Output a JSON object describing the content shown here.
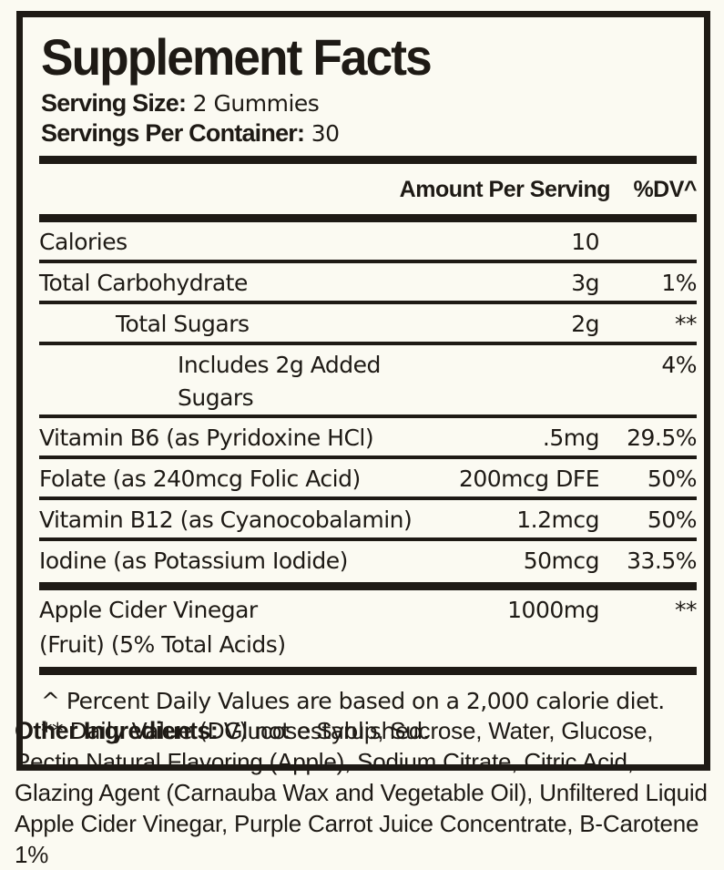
{
  "label": {
    "title": "Supplement Facts",
    "serving_size_label": "Serving Size:",
    "serving_size_value": "2 Gummies",
    "servings_per_container_label": "Servings Per Container:",
    "servings_per_container_value": "30",
    "column_headers": {
      "amount": "Amount Per Serving",
      "dv": "%DV^"
    },
    "rows": [
      {
        "name": "Calories",
        "amount": "10",
        "dv": "",
        "indent": 0
      },
      {
        "name": "Total Carbohydrate",
        "amount": "3g",
        "dv": "1%",
        "indent": 0
      },
      {
        "name": "Total Sugars",
        "amount": "2g",
        "dv": "**",
        "indent": 1
      },
      {
        "name": "Includes 2g Added Sugars",
        "amount": "",
        "dv": "4%",
        "indent": 2
      },
      {
        "name": "Vitamin B6 (as Pyridoxine HCl)",
        "amount": ".5mg",
        "dv": "29.5%",
        "indent": 0
      },
      {
        "name": "Folate (as 240mcg Folic Acid)",
        "amount": "200mcg DFE",
        "dv": "50%",
        "indent": 0
      },
      {
        "name": "Vitamin B12 (as Cyanocobalamin)",
        "amount": "1.2mcg",
        "dv": "50%",
        "indent": 0
      },
      {
        "name": "Iodine (as Potassium Iodide)",
        "amount": "50mcg",
        "dv": "33.5%",
        "indent": 0,
        "thick_after": true
      },
      {
        "name": "Apple Cider Vinegar",
        "name_line2": "(Fruit) (5% Total Acids)",
        "amount": "1000mg",
        "dv": "**",
        "indent": 0,
        "thick_after": true
      }
    ],
    "footnotes": [
      "^ Percent Daily Values are based on a 2,000 calorie diet.",
      "** Daily Value (DV) not established."
    ],
    "other_ingredients_label": "Other Ingredients:",
    "other_ingredients_text": "Glucose Syrup, Sucrose, Water, Glucose, Pectin Natural Flavoring (Apple), Sodium Citrate, Citric Acid, Glazing Agent (Carnauba Wax and Vegetable Oil), Unfiltered Liquid Apple Cider Vinegar, Purple Carrot Juice Concentrate, B-Carotene 1%",
    "colors": {
      "background": "#fbfaf2",
      "ink": "#1e1a15"
    }
  }
}
